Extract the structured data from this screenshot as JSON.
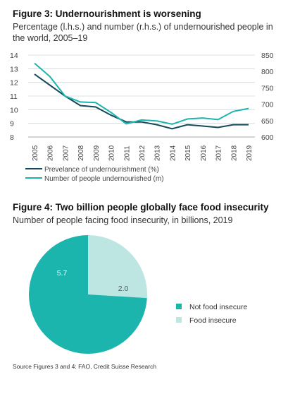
{
  "fig3": {
    "title": "Figure 3: Undernourishment is worsening",
    "subtitle": "Percentage (l.h.s.) and number (r.h.s.) of undernourished people in the world, 2005–19"
  },
  "fig4": {
    "title": "Figure 4: Two billion people globally face food insecurity",
    "subtitle": "Number of people facing food insecurity, in billions, 2019"
  },
  "source": "Source Figures 3 and 4: FAO, Credit Suisse Research",
  "chart_data": [
    {
      "type": "line",
      "x": [
        "2005",
        "2006",
        "2007",
        "2008",
        "2009",
        "2010",
        "2011",
        "2012",
        "2013",
        "2014",
        "2015",
        "2016",
        "2017",
        "2018",
        "2019"
      ],
      "ylim_left": [
        8,
        14
      ],
      "yticks_left": [
        "8",
        "9",
        "10",
        "11",
        "12",
        "13",
        "14"
      ],
      "ylim_right": [
        600,
        850
      ],
      "yticks_right": [
        "600",
        "650",
        "700",
        "750",
        "800",
        "850"
      ],
      "grid": true,
      "legend_position": "bottom-left",
      "series": [
        {
          "name": "Prevelance of undernourishment (%)",
          "axis": "left",
          "color": "#15495a",
          "values": [
            12.6,
            11.8,
            11.0,
            10.3,
            10.2,
            9.6,
            9.1,
            9.1,
            8.9,
            8.6,
            8.9,
            8.8,
            8.7,
            8.9,
            8.9
          ]
        },
        {
          "name": "Number of people undernourished (m)",
          "axis": "right",
          "color": "#1cb5ae",
          "values": [
            825,
            785,
            725,
            707,
            705,
            675,
            640,
            652,
            649,
            639,
            655,
            658,
            653,
            678,
            687
          ]
        }
      ]
    },
    {
      "type": "pie",
      "categories": [
        "Not food insecure",
        "Food insecure"
      ],
      "values": [
        5.7,
        2.0
      ],
      "value_labels": [
        "5.7",
        "2.0"
      ],
      "colors": [
        "#1cb5ae",
        "#bde6e3"
      ],
      "legend_position": "right"
    }
  ]
}
